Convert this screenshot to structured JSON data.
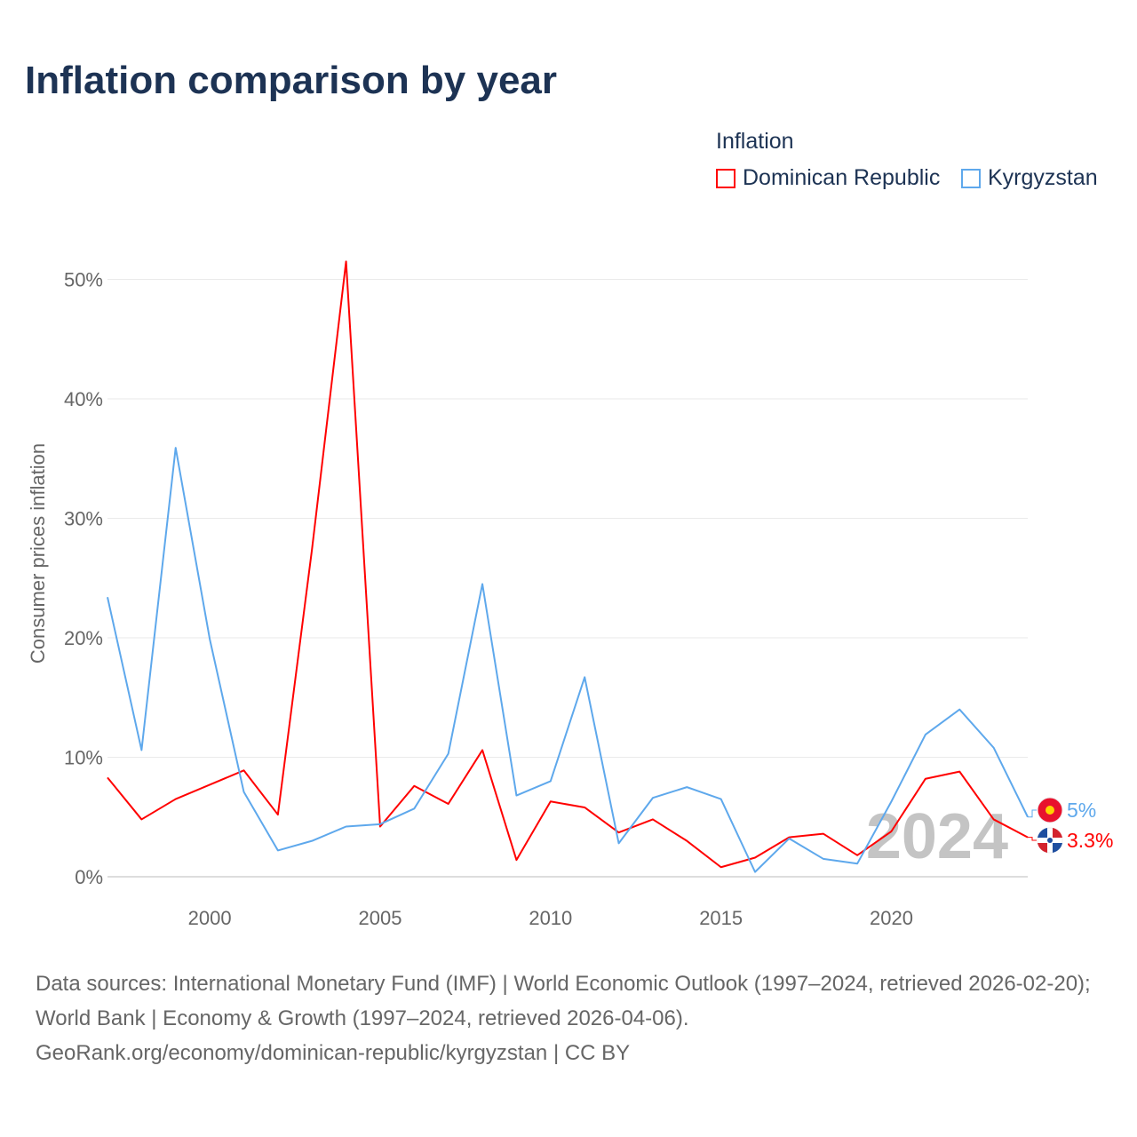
{
  "chart_data": {
    "type": "line",
    "title": "Inflation comparison by year",
    "ylabel": "Consumer prices inflation",
    "xlabel": "",
    "legend_title": "Inflation",
    "legend_position": "top-right",
    "ylim": [
      0,
      52
    ],
    "xlim": [
      1997,
      2024
    ],
    "yticks": [
      {
        "v": 0,
        "label": "0%"
      },
      {
        "v": 10,
        "label": "10%"
      },
      {
        "v": 20,
        "label": "20%"
      },
      {
        "v": 30,
        "label": "30%"
      },
      {
        "v": 40,
        "label": "40%"
      },
      {
        "v": 50,
        "label": "50%"
      }
    ],
    "xticks": [
      {
        "v": 2000,
        "label": "2000"
      },
      {
        "v": 2005,
        "label": "2005"
      },
      {
        "v": 2010,
        "label": "2010"
      },
      {
        "v": 2015,
        "label": "2015"
      },
      {
        "v": 2020,
        "label": "2020"
      }
    ],
    "x": [
      1997,
      1998,
      1999,
      2000,
      2001,
      2002,
      2003,
      2004,
      2005,
      2006,
      2007,
      2008,
      2009,
      2010,
      2011,
      2012,
      2013,
      2014,
      2015,
      2016,
      2017,
      2018,
      2019,
      2020,
      2021,
      2022,
      2023,
      2024
    ],
    "series": [
      {
        "name": "Dominican Republic",
        "color": "#ff0000",
        "end_label": "3.3%",
        "values": [
          8.3,
          4.8,
          6.5,
          7.7,
          8.9,
          5.2,
          27.4,
          51.5,
          4.2,
          7.6,
          6.1,
          10.6,
          1.4,
          6.3,
          5.8,
          3.7,
          4.8,
          3.0,
          0.8,
          1.6,
          3.3,
          3.6,
          1.8,
          3.8,
          8.2,
          8.8,
          4.8,
          3.3
        ]
      },
      {
        "name": "Kyrgyzstan",
        "color": "#5ea8ec",
        "end_label": "5%",
        "values": [
          23.4,
          10.6,
          35.9,
          19.9,
          7.1,
          2.2,
          3.0,
          4.2,
          4.4,
          5.7,
          10.3,
          24.5,
          6.8,
          8.0,
          16.7,
          2.8,
          6.6,
          7.5,
          6.5,
          0.4,
          3.2,
          1.5,
          1.1,
          6.3,
          11.9,
          14.0,
          10.8,
          5.0
        ]
      }
    ],
    "year_watermark": "2024"
  },
  "source": {
    "line1": "Data sources: International Monetary Fund (IMF) | World Economic Outlook (1997–2024, retrieved 2026-02-20); World Bank | Economy & Growth (1997–2024, retrieved 2026-04-06).",
    "line2": "GeoRank.org/economy/dominican-republic/kyrgyzstan | CC BY"
  }
}
